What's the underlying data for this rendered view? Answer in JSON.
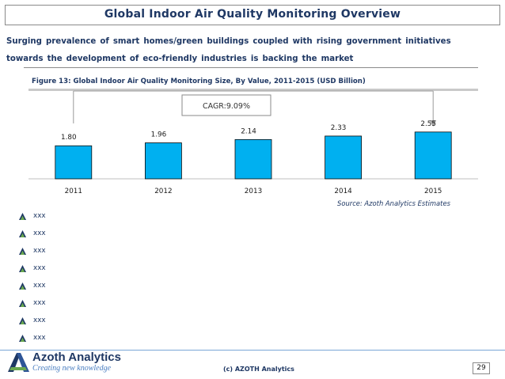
{
  "header": {
    "title": "Global Indoor Air Quality Monitoring  Overview"
  },
  "subtitle": {
    "line1": "Surging prevalence of smart homes/green buildings coupled with rising government initiatives",
    "line2": "towards the development of eco-friendly industries is backing the market"
  },
  "figure": {
    "caption": "Figure 13: Global Indoor Air Quality Monitoring Size, By Value, 2011-2015 (USD Billion)",
    "source": "Source:  Azoth Analytics Estimates"
  },
  "chart_data": {
    "type": "bar",
    "categories": [
      "2011",
      "2012",
      "2013",
      "2014",
      "2015"
    ],
    "values": [
      1.8,
      1.96,
      2.14,
      2.33,
      2.55
    ],
    "value_labels": [
      "1.80",
      "1.96",
      "2.14",
      "2.33",
      "2.55"
    ],
    "title": "Figure 13: Global Indoor Air Quality Monitoring Size, By Value, 2011-2015 (USD Billion)",
    "annotation": "CAGR:9.09%",
    "ylim": [
      0,
      2.7
    ],
    "grid": false,
    "legend": "none",
    "bar_color": "#00b0f0"
  },
  "bullets": [
    "xxx",
    "xxx",
    "xxx",
    "xxx",
    "xxx",
    "xxx",
    "xxx",
    "xxx"
  ],
  "footer": {
    "brand": "Azoth Analytics",
    "tagline": "Creating new knowledge",
    "copyright": "(c) AZOTH Analytics",
    "page": "29"
  },
  "colors": {
    "navy": "#1f3864",
    "accent": "#00b0f0",
    "logo_green": "#6aa84f"
  }
}
